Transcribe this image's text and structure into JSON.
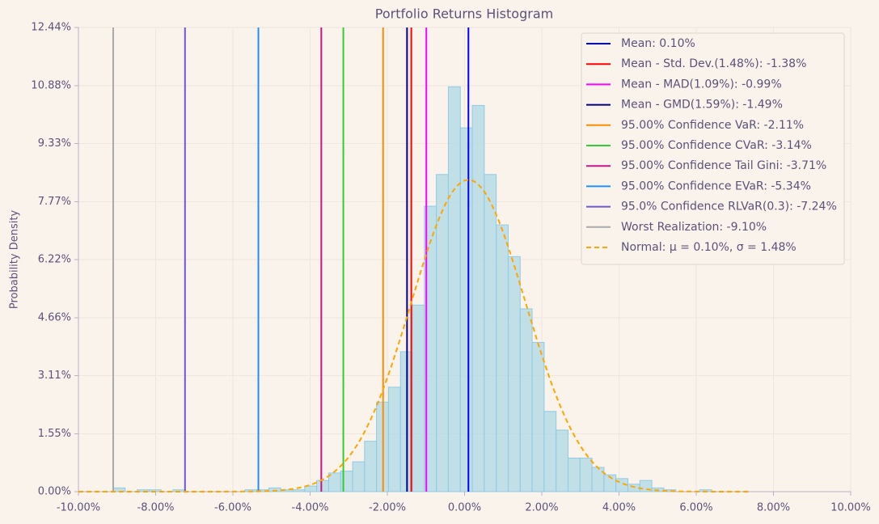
{
  "chart_data": {
    "type": "histogram",
    "title": "Portfolio Returns Histogram",
    "ylabel": "Probability Density",
    "bins": [
      -9.1,
      -8.79,
      -8.48,
      -8.17,
      -7.86,
      -7.55,
      -7.24,
      -6.93,
      -6.62,
      -6.31,
      -6.0,
      -5.69,
      -5.38,
      -5.07,
      -4.76,
      -4.45,
      -4.14,
      -3.83,
      -3.52,
      -3.21,
      -2.9,
      -2.59,
      -2.28,
      -1.97,
      -1.66,
      -1.35,
      -1.04,
      -0.73,
      -0.42,
      -0.11,
      0.2,
      0.51,
      0.82,
      1.13,
      1.44,
      1.75,
      2.06,
      2.37,
      2.68,
      2.99,
      3.3,
      3.61,
      3.92,
      4.23,
      4.54,
      4.85,
      5.16,
      5.47,
      5.78,
      6.09,
      6.4
    ],
    "values": [
      0.1,
      0,
      0.05,
      0.05,
      0,
      0.05,
      0,
      0,
      0,
      0,
      0,
      0.05,
      0.05,
      0.1,
      0.05,
      0.05,
      0.15,
      0.3,
      0.5,
      0.55,
      0.8,
      1.35,
      2.4,
      2.8,
      3.75,
      5.0,
      7.65,
      8.5,
      10.85,
      9.75,
      10.35,
      8.5,
      7.15,
      6.3,
      4.9,
      4.0,
      2.15,
      1.65,
      0.9,
      0.9,
      0.65,
      0.45,
      0.35,
      0.2,
      0.3,
      0.1,
      0.05,
      0,
      0,
      0.05
    ],
    "color": "#add8e6",
    "edgecolor": "#8fcbe4",
    "lines": [
      {
        "name": "Mean: 0.10%",
        "color": "#0000ff",
        "value": 0.1
      },
      {
        "name": "Mean - Std. Dev.(1.48%): -1.38%",
        "color": "#ff0000",
        "value": -1.38
      },
      {
        "name": "Mean - MAD(1.09%): -0.99%",
        "color": "#ff00ff",
        "value": -0.99
      },
      {
        "name": "Mean - GMD(1.59%): -1.49%",
        "color": "#000080",
        "value": -1.49
      },
      {
        "name": "95.00% Confidence VaR: -2.11%",
        "color": "#ff8c00",
        "value": -2.11
      },
      {
        "name": "95.00% Confidence CVaR: -3.14%",
        "color": "#32cd32",
        "value": -3.14
      },
      {
        "name": "95.00% Confidence Tail Gini: -3.71%",
        "color": "#c71585",
        "value": -3.71
      },
      {
        "name": "95.00% Confidence EVaR: -5.34%",
        "color": "#1e90ff",
        "value": -5.34
      },
      {
        "name": "95.0% Confidence RLVaR(0.3): -7.24%",
        "color": "#6a5acd",
        "value": -7.24
      },
      {
        "name": "Worst Realization: -9.10%",
        "color": "#a9a9a9",
        "value": -9.1
      }
    ],
    "normal": {
      "name": "Normal: μ = 0.10%, σ = 1.48%",
      "color": "#ffa500",
      "mu": 0.1,
      "sigma": 1.48
    },
    "xlim": [
      -10,
      10
    ],
    "xticks": [
      {
        "value": -10,
        "label": "-10.00%"
      },
      {
        "value": -8,
        "label": "-8.00%"
      },
      {
        "value": -6,
        "label": "-6.00%"
      },
      {
        "value": -4,
        "label": "-4.00%"
      },
      {
        "value": -2,
        "label": "-2.00%"
      },
      {
        "value": 0,
        "label": "0.00%"
      },
      {
        "value": 2,
        "label": "2.00%"
      },
      {
        "value": 4,
        "label": "4.00%"
      },
      {
        "value": 6,
        "label": "6.00%"
      },
      {
        "value": 8,
        "label": "8.00%"
      },
      {
        "value": 10,
        "label": "10.00%"
      }
    ],
    "ylim": [
      0,
      12.44
    ],
    "yticks": [
      {
        "value": 0,
        "label": "0.00%"
      },
      {
        "value": 1.55,
        "label": "1.55%"
      },
      {
        "value": 3.11,
        "label": "3.11%"
      },
      {
        "value": 4.66,
        "label": "4.66%"
      },
      {
        "value": 6.22,
        "label": "6.22%"
      },
      {
        "value": 7.77,
        "label": "7.77%"
      },
      {
        "value": 9.33,
        "label": "9.33%"
      },
      {
        "value": 10.88,
        "label": "10.88%"
      },
      {
        "value": 12.44,
        "label": "12.44%"
      }
    ],
    "grid": true,
    "legend": "upper right"
  }
}
